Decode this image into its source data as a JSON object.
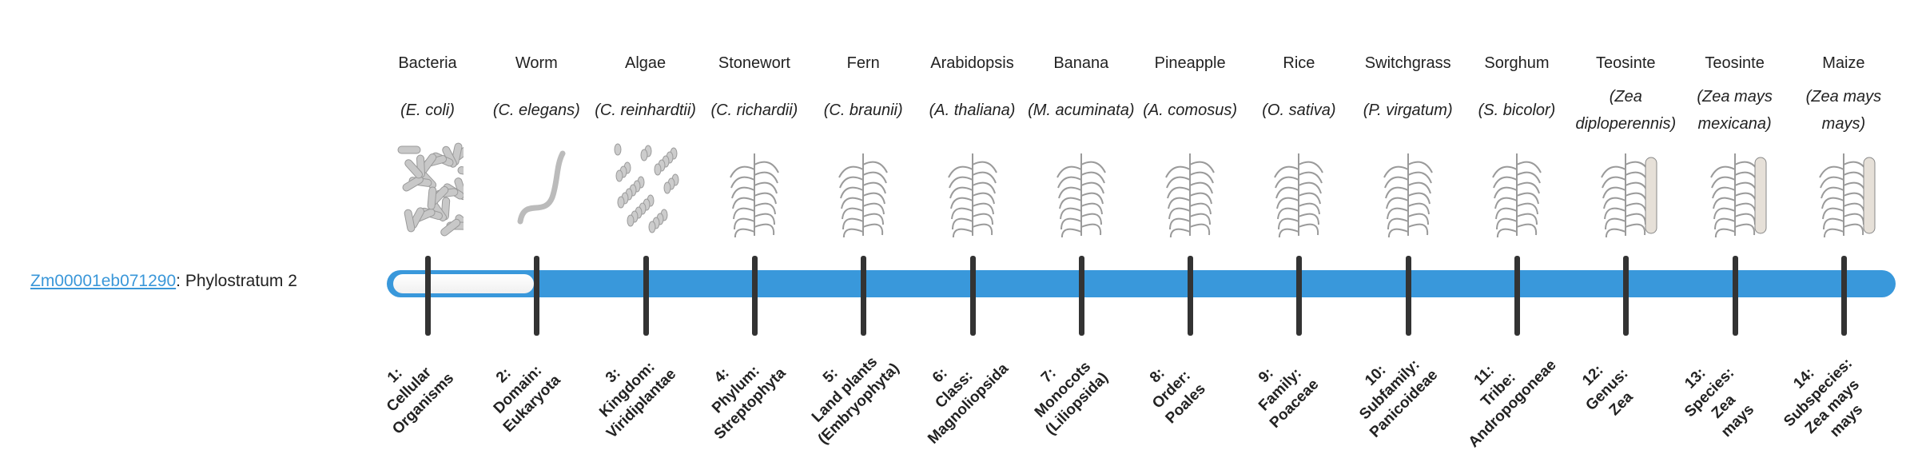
{
  "colors": {
    "accent": "#3998db",
    "tick": "#333333",
    "link": "#3a97d9"
  },
  "gene": {
    "id": "Zm00001eb071290",
    "separator": ": ",
    "label": "Phylostratum 2"
  },
  "progress": {
    "phylostratum": 2,
    "total": 14
  },
  "organisms": [
    {
      "common": "Bacteria",
      "scientific": "(E. coli)",
      "icon": "bacteria-image",
      "stratum": [
        "1:",
        "Cellular",
        "Organisms"
      ]
    },
    {
      "common": "Worm",
      "scientific": "(C. elegans)",
      "icon": "worm-image",
      "stratum": [
        "2:",
        "Domain:",
        "Eukaryota"
      ]
    },
    {
      "common": "Algae",
      "scientific": "(C. reinhardtii)",
      "icon": "algae-image",
      "stratum": [
        "3:",
        "Kingdom:",
        "Viridiplantae"
      ]
    },
    {
      "common": "Stonewort",
      "scientific": "(C. richardii)",
      "icon": "stonewort-image",
      "stratum": [
        "4:",
        "Phylum:",
        "Streptophyta"
      ]
    },
    {
      "common": "Fern",
      "scientific": "(C. braunii)",
      "icon": "fern-image",
      "stratum": [
        "5:",
        "Land plants",
        "(Embryophyta)"
      ]
    },
    {
      "common": "Arabidopsis",
      "scientific": "(A. thaliana)",
      "icon": "arabidopsis-image",
      "stratum": [
        "6:",
        "Class:",
        "Magnoliopsida"
      ]
    },
    {
      "common": "Banana",
      "scientific": "(M. acuminata)",
      "icon": "banana-image",
      "stratum": [
        "7:",
        "Monocots",
        "(Liliopsida)"
      ]
    },
    {
      "common": "Pineapple",
      "scientific": "(A. comosus)",
      "icon": "pineapple-image",
      "stratum": [
        "8:",
        "Order:",
        "Poales"
      ]
    },
    {
      "common": "Rice",
      "scientific": "(O. sativa)",
      "icon": "rice-image",
      "stratum": [
        "9:",
        "Family:",
        "Poaceae"
      ]
    },
    {
      "common": "Switchgrass",
      "scientific": "(P. virgatum)",
      "icon": "switchgrass-image",
      "stratum": [
        "10:",
        "Subfamily:",
        "Panicoideae"
      ]
    },
    {
      "common": "Sorghum",
      "scientific": "(S. bicolor)",
      "icon": "sorghum-image",
      "stratum": [
        "11:",
        "Tribe:",
        "Andropogoneae"
      ]
    },
    {
      "common": "Teosinte",
      "scientific": "(Zea diploperennis)",
      "icon": "teosinte-image",
      "stratum": [
        "12:",
        "Genus:",
        "Zea"
      ]
    },
    {
      "common": "Teosinte",
      "scientific": "(Zea mays mexicana)",
      "icon": "teosinte-mexicana-image",
      "stratum": [
        "13:",
        "Species:",
        "Zea",
        "mays"
      ]
    },
    {
      "common": "Maize",
      "scientific": "(Zea mays mays)",
      "icon": "maize-image",
      "stratum": [
        "14:",
        "Subspecies:",
        "Zea mays",
        "mays"
      ]
    }
  ]
}
